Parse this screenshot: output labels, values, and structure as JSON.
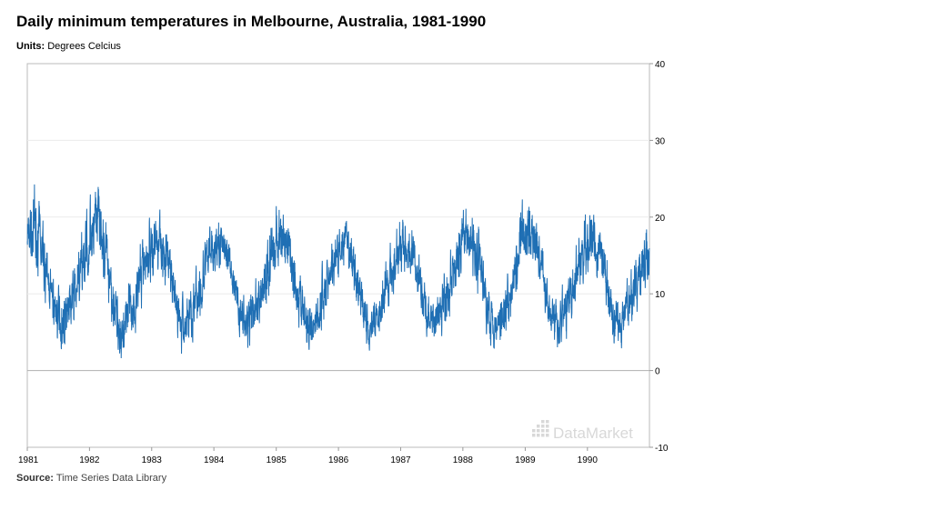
{
  "title": "Daily minimum temperatures in Melbourne, Australia, 1981-1990",
  "units_label": "Units:",
  "units_value": "Degrees Celcius",
  "source_label": "Source:",
  "source_value": "Time Series Data Library",
  "watermark": "DataMarket",
  "chart_data": {
    "type": "line",
    "title": "Daily minimum temperatures in Melbourne, Australia, 1981-1990",
    "xlabel": "",
    "ylabel": "Degrees Celcius",
    "x_ticks": [
      "1981",
      "1982",
      "1983",
      "1984",
      "1985",
      "1986",
      "1987",
      "1988",
      "1989",
      "1990"
    ],
    "y_ticks": [
      40,
      30,
      20,
      10,
      0,
      -10
    ],
    "xlim": [
      "1981-01-01",
      "1990-12-31"
    ],
    "ylim": [
      -10,
      40
    ],
    "grid": true,
    "y_axis_position": "right",
    "series_color": "#1f6fb4",
    "monthly_min_approx": {
      "x": [
        "1981-01",
        "1981-02",
        "1981-03",
        "1981-04",
        "1981-05",
        "1981-06",
        "1981-07",
        "1981-08",
        "1981-09",
        "1981-10",
        "1981-11",
        "1981-12",
        "1982-01",
        "1982-02",
        "1982-03",
        "1982-04",
        "1982-05",
        "1982-06",
        "1982-07",
        "1982-08",
        "1982-09",
        "1982-10",
        "1982-11",
        "1982-12",
        "1983-01",
        "1983-02",
        "1983-03",
        "1983-04",
        "1983-05",
        "1983-06",
        "1983-07",
        "1983-08",
        "1983-09",
        "1983-10",
        "1983-11",
        "1983-12",
        "1984-01",
        "1984-02",
        "1984-03",
        "1984-04",
        "1984-05",
        "1984-06",
        "1984-07",
        "1984-08",
        "1984-09",
        "1984-10",
        "1984-11",
        "1984-12",
        "1985-01",
        "1985-02",
        "1985-03",
        "1985-04",
        "1985-05",
        "1985-06",
        "1985-07",
        "1985-08",
        "1985-09",
        "1985-10",
        "1985-11",
        "1985-12",
        "1986-01",
        "1986-02",
        "1986-03",
        "1986-04",
        "1986-05",
        "1986-06",
        "1986-07",
        "1986-08",
        "1986-09",
        "1986-10",
        "1986-11",
        "1986-12",
        "1987-01",
        "1987-02",
        "1987-03",
        "1987-04",
        "1987-05",
        "1987-06",
        "1987-07",
        "1987-08",
        "1987-09",
        "1987-10",
        "1987-11",
        "1987-12",
        "1988-01",
        "1988-02",
        "1988-03",
        "1988-04",
        "1988-05",
        "1988-06",
        "1988-07",
        "1988-08",
        "1988-09",
        "1988-10",
        "1988-11",
        "1988-12",
        "1989-01",
        "1989-02",
        "1989-03",
        "1989-04",
        "1989-05",
        "1989-06",
        "1989-07",
        "1989-08",
        "1989-09",
        "1989-10",
        "1989-11",
        "1989-12",
        "1990-01",
        "1990-02",
        "1990-03",
        "1990-04",
        "1990-05",
        "1990-06",
        "1990-07",
        "1990-08",
        "1990-09",
        "1990-10",
        "1990-11",
        "1990-12"
      ],
      "low": [
        12,
        12,
        11,
        9,
        6,
        3,
        2,
        3,
        4,
        6,
        8,
        10,
        12,
        13,
        11,
        8,
        5,
        1,
        0,
        2,
        4,
        6,
        8,
        10,
        11,
        12,
        11,
        9,
        5,
        2,
        1,
        3,
        4,
        6,
        9,
        11,
        11,
        13,
        12,
        9,
        5,
        3,
        1,
        2,
        4,
        6,
        8,
        10,
        11,
        12,
        11,
        8,
        5,
        2,
        1,
        3,
        4,
        6,
        8,
        10,
        12,
        12,
        10,
        8,
        5,
        2,
        2,
        3,
        4,
        6,
        8,
        10,
        11,
        12,
        10,
        8,
        5,
        2,
        2,
        3,
        4,
        6,
        8,
        10,
        12,
        12,
        10,
        8,
        5,
        3,
        2,
        3,
        4,
        6,
        9,
        11,
        12,
        12,
        10,
        8,
        5,
        3,
        2,
        3,
        4,
        6,
        8,
        10,
        11,
        12,
        10,
        8,
        5,
        3,
        2,
        3,
        4,
        6,
        8,
        10
      ],
      "high": [
        24,
        25,
        22,
        18,
        14,
        12,
        11,
        12,
        13,
        16,
        19,
        22,
        25,
        26,
        23,
        19,
        14,
        11,
        10,
        12,
        14,
        16,
        19,
        21,
        22,
        22,
        21,
        18,
        14,
        11,
        10,
        12,
        14,
        16,
        19,
        20,
        20,
        20,
        19,
        17,
        13,
        11,
        10,
        12,
        14,
        16,
        19,
        23,
        24,
        23,
        21,
        18,
        14,
        11,
        10,
        11,
        13,
        16,
        18,
        20,
        20,
        20,
        19,
        17,
        13,
        11,
        10,
        12,
        14,
        16,
        18,
        19,
        21,
        20,
        19,
        17,
        13,
        11,
        10,
        12,
        14,
        16,
        19,
        23,
        24,
        23,
        21,
        18,
        14,
        11,
        10,
        11,
        13,
        16,
        19,
        23,
        23,
        22,
        20,
        17,
        13,
        11,
        10,
        12,
        14,
        16,
        19,
        22,
        22,
        21,
        20,
        17,
        13,
        11,
        10,
        12,
        14,
        16,
        18,
        20
      ]
    }
  }
}
